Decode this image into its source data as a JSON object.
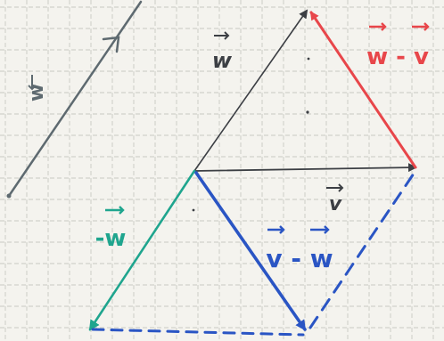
{
  "figure": {
    "labels": {
      "w_left": "w",
      "w_middle": "w",
      "v": "v",
      "neg_w": "-w",
      "w_minus_v": "w - v",
      "v_minus_w": "v - w"
    }
  },
  "colors": {
    "paper": "#f4f3ee",
    "grid": "#c9c9c3",
    "gray_vector": "#5e6a70",
    "teal_vector": "#1fa58e",
    "red_vector": "#e8464a",
    "blue_vector": "#2a55c4",
    "dark_vector": "#3c3f44"
  }
}
